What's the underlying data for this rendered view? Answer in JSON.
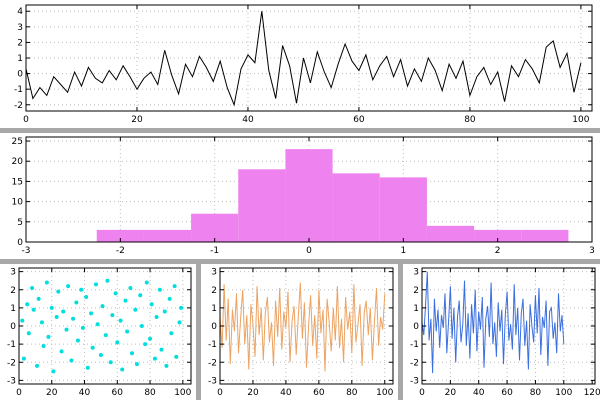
{
  "figure": {
    "bg": "#ffffff",
    "separator_color": "#a8a8a8",
    "grid_color": "#bdbdbd",
    "axis_color": "#000000",
    "tick_font_px": 9
  },
  "chart_data": [
    {
      "id": "noise-line-black",
      "type": "line",
      "title": "",
      "xlabel": "",
      "ylabel": "",
      "color": "#000000",
      "xlim": [
        0,
        102
      ],
      "ylim": [
        -2.4,
        4.4
      ],
      "xticks": [
        0,
        20,
        40,
        60,
        80,
        100
      ],
      "yticks": [
        -2,
        -1,
        0,
        1,
        2,
        3,
        4
      ],
      "x_max": 100,
      "margins": {
        "l": 26,
        "r": 8,
        "t": 5,
        "b": 17
      },
      "y": [
        0.3,
        -1.6,
        -0.9,
        -1.4,
        -0.2,
        -0.7,
        -1.2,
        0.1,
        -0.8,
        0.4,
        -0.3,
        -0.6,
        0.2,
        -0.4,
        0.5,
        -0.2,
        -1.0,
        -0.3,
        0.1,
        -0.7,
        1.5,
        -0.1,
        -1.3,
        0.6,
        -0.2,
        1.1,
        0.4,
        -0.5,
        0.8,
        -0.9,
        -2.0,
        0.3,
        1.2,
        0.7,
        4.0,
        0.2,
        -1.6,
        1.8,
        0.5,
        -1.9,
        1.0,
        -0.6,
        1.4,
        0.1,
        -0.9,
        0.6,
        1.9,
        0.8,
        0.2,
        1.2,
        -0.4,
        0.5,
        1.1,
        -0.2,
        0.9,
        -0.8,
        0.3,
        -0.5,
        1.0,
        0.2,
        -1.1,
        0.6,
        -0.3,
        0.8,
        -1.4,
        -0.2,
        0.4,
        -0.7,
        0.1,
        -1.8,
        0.5,
        -0.2,
        0.9,
        0.3,
        -0.6,
        1.7,
        2.1,
        0.4,
        1.3,
        -1.2,
        0.7
      ]
    },
    {
      "id": "histogram-violet",
      "type": "histogram",
      "title": "",
      "xlabel": "",
      "ylabel": "",
      "color": "#ee82ee",
      "xlim": [
        -3,
        3
      ],
      "ylim": [
        0,
        26
      ],
      "xticks": [
        -3,
        -2,
        -1,
        0,
        1,
        2,
        3
      ],
      "yticks": [
        0,
        5,
        10,
        15,
        20,
        25
      ],
      "margins": {
        "l": 26,
        "r": 8,
        "t": 4,
        "b": 17
      },
      "bins": {
        "start": -2.25,
        "width": 0.5,
        "counts": [
          3,
          3,
          7,
          18,
          23,
          17,
          16,
          4,
          3,
          3
        ]
      }
    },
    {
      "id": "scatter-cyan",
      "type": "scatter",
      "title": "",
      "xlabel": "",
      "ylabel": "",
      "color": "#00dede",
      "xlim": [
        0,
        105
      ],
      "ylim": [
        -3.2,
        3.2
      ],
      "xticks": [
        0,
        20,
        40,
        60,
        80,
        100
      ],
      "yticks": [
        -3,
        -2,
        -1,
        0,
        1,
        2,
        3
      ],
      "margins": {
        "l": 19,
        "r": 5,
        "t": 4,
        "b": 16
      },
      "points": [
        [
          2,
          0.3
        ],
        [
          3,
          -1.8
        ],
        [
          5,
          1.2
        ],
        [
          6,
          -0.4
        ],
        [
          8,
          2.1
        ],
        [
          9,
          0.9
        ],
        [
          11,
          -2.2
        ],
        [
          12,
          1.5
        ],
        [
          14,
          0.2
        ],
        [
          15,
          -1.1
        ],
        [
          17,
          2.4
        ],
        [
          18,
          -0.6
        ],
        [
          20,
          1.0
        ],
        [
          21,
          -2.5
        ],
        [
          23,
          0.5
        ],
        [
          24,
          1.9
        ],
        [
          26,
          -1.4
        ],
        [
          27,
          0.8
        ],
        [
          29,
          -0.2
        ],
        [
          30,
          2.2
        ],
        [
          32,
          -1.9
        ],
        [
          33,
          0.4
        ],
        [
          35,
          1.3
        ],
        [
          36,
          -0.8
        ],
        [
          38,
          2.0
        ],
        [
          39,
          -0.1
        ],
        [
          41,
          1.6
        ],
        [
          42,
          -2.3
        ],
        [
          44,
          0.7
        ],
        [
          45,
          -1.2
        ],
        [
          47,
          2.3
        ],
        [
          48,
          0.1
        ],
        [
          50,
          -1.6
        ],
        [
          51,
          1.1
        ],
        [
          53,
          -0.5
        ],
        [
          54,
          2.5
        ],
        [
          56,
          -2.0
        ],
        [
          57,
          0.6
        ],
        [
          59,
          1.8
        ],
        [
          60,
          -0.9
        ],
        [
          62,
          0.3
        ],
        [
          63,
          -2.4
        ],
        [
          65,
          1.4
        ],
        [
          66,
          -0.3
        ],
        [
          68,
          2.1
        ],
        [
          69,
          -1.5
        ],
        [
          71,
          0.9
        ],
        [
          72,
          -2.1
        ],
        [
          74,
          1.7
        ],
        [
          75,
          0.0
        ],
        [
          77,
          -1.0
        ],
        [
          78,
          2.4
        ],
        [
          80,
          -0.7
        ],
        [
          81,
          1.2
        ],
        [
          83,
          -1.8
        ],
        [
          84,
          0.5
        ],
        [
          86,
          2.0
        ],
        [
          87,
          -1.3
        ],
        [
          89,
          0.8
        ],
        [
          90,
          -2.2
        ],
        [
          92,
          1.5
        ],
        [
          93,
          -0.4
        ],
        [
          95,
          2.2
        ],
        [
          96,
          -1.7
        ],
        [
          98,
          0.2
        ],
        [
          99,
          1.0
        ]
      ]
    },
    {
      "id": "noise-line-orange",
      "type": "line",
      "title": "",
      "xlabel": "",
      "ylabel": "",
      "color": "#eda362",
      "xlim": [
        0,
        105
      ],
      "ylim": [
        -3.2,
        3.2
      ],
      "xticks": [
        0,
        20,
        40,
        60,
        80,
        100
      ],
      "yticks": [
        -3,
        -2,
        -1,
        0,
        1,
        2,
        3
      ],
      "x_max": 100,
      "margins": {
        "l": 19,
        "r": 5,
        "t": 4,
        "b": 16
      },
      "y": [
        0.5,
        -1.2,
        2.3,
        -0.8,
        1.5,
        -2.1,
        0.9,
        -0.3,
        1.8,
        -1.5,
        0.4,
        2.0,
        -1.0,
        0.6,
        -2.4,
        1.2,
        0.1,
        -1.7,
        2.2,
        -0.5,
        1.0,
        -1.9,
        0.7,
        1.6,
        -0.9,
        0.2,
        -2.2,
        1.4,
        -0.6,
        2.1,
        -1.3,
        0.8,
        -0.1,
        1.9,
        -2.0,
        0.3,
        1.1,
        -1.6,
        0.5,
        2.4,
        -0.7,
        1.3,
        -2.3,
        0.0,
        1.7,
        -1.1,
        0.6,
        -1.8,
        2.0,
        -0.4,
        0.9,
        -2.5,
        1.5,
        0.2,
        -1.4,
        1.0,
        -0.8,
        2.2,
        -1.2,
        0.4,
        -2.0,
        1.6,
        -0.2,
        0.8,
        -1.5,
        2.3,
        -0.9,
        0.1,
        1.2,
        -2.2,
        0.7,
        1.4,
        -0.5,
        1.0,
        -1.9,
        0.3,
        2.1,
        -1.1,
        0.5,
        -0.2,
        1.8
      ]
    },
    {
      "id": "noise-line-blue",
      "type": "line",
      "title": "",
      "xlabel": "",
      "ylabel": "",
      "color": "#3b6fe0",
      "xlim": [
        0,
        122
      ],
      "ylim": [
        -3.2,
        3.2
      ],
      "xticks": [
        0,
        20,
        40,
        60,
        80,
        100,
        120
      ],
      "yticks": [
        -3,
        -2,
        -1,
        0,
        1,
        2,
        3
      ],
      "x_max": 100,
      "margins": {
        "l": 19,
        "r": 5,
        "t": 4,
        "b": 16
      },
      "y": [
        0.2,
        -0.5,
        1.1,
        3.0,
        -0.8,
        0.4,
        -2.6,
        1.5,
        -0.3,
        0.9,
        -1.2,
        0.6,
        -0.1,
        1.8,
        -1.5,
        0.3,
        2.2,
        -0.7,
        1.0,
        -2.0,
        0.5,
        1.4,
        -0.9,
        0.1,
        2.5,
        -1.1,
        0.7,
        -1.8,
        1.2,
        -0.4,
        2.0,
        -1.4,
        0.8,
        -0.2,
        1.6,
        -2.3,
        0.4,
        1.1,
        -0.6,
        2.4,
        -1.0,
        0.2,
        -1.7,
        1.3,
        -0.3,
        0.9,
        -2.1,
        0.6,
        1.9,
        -0.8,
        0.1,
        -1.3,
        2.3,
        -0.5,
        1.0,
        -1.9,
        0.7,
        1.5,
        -1.1,
        0.3,
        -2.4,
        1.2,
        0.0,
        -0.9,
        1.7,
        -0.4,
        2.1,
        -1.6,
        0.5,
        -0.1,
        1.4,
        -2.2,
        0.8,
        1.0,
        -0.7,
        0.2,
        -1.5,
        1.8,
        -0.3,
        0.6,
        -1.0
      ]
    }
  ]
}
